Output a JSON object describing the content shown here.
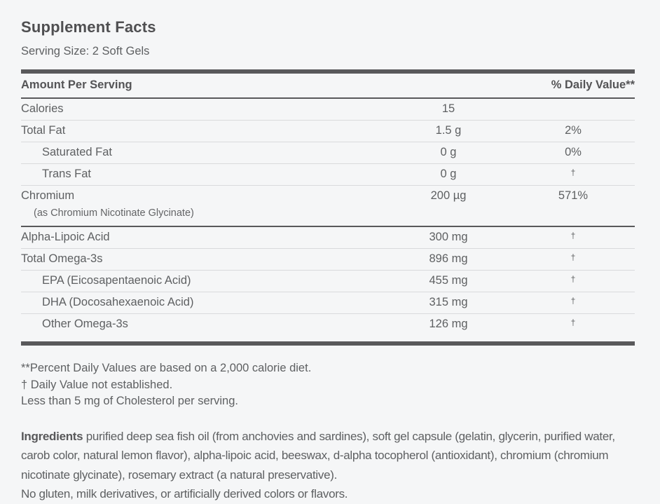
{
  "title": "Supplement Facts",
  "serving_size": "Serving Size: 2 Soft Gels",
  "table": {
    "header": {
      "amount_label": "Amount Per Serving",
      "dv_label": "% Daily Value**"
    },
    "rows": [
      {
        "name": "Calories",
        "amount": "15",
        "dv": ""
      },
      {
        "name": "Total Fat",
        "amount": "1.5 g",
        "dv": "2%"
      },
      {
        "name": "Saturated Fat",
        "amount": "0 g",
        "dv": "0%",
        "indent": true
      },
      {
        "name": "Trans Fat",
        "amount": "0 g",
        "dv": "†",
        "indent": true
      },
      {
        "name": "Chromium",
        "sub": "(as Chromium Nicotinate Glycinate)",
        "amount": "200 µg",
        "dv": "571%"
      },
      {
        "name": "Alpha-Lipoic Acid",
        "amount": "300 mg",
        "dv": "†",
        "strong_top": true
      },
      {
        "name": "Total Omega-3s",
        "amount": "896 mg",
        "dv": "†"
      },
      {
        "name": "EPA (Eicosapentaenoic Acid)",
        "amount": "455 mg",
        "dv": "†",
        "indent": true
      },
      {
        "name": "DHA (Docosahexaenoic Acid)",
        "amount": "315 mg",
        "dv": "†",
        "indent": true
      },
      {
        "name": "Other Omega-3s",
        "amount": "126 mg",
        "dv": "†",
        "indent": true
      }
    ]
  },
  "footnotes": [
    "**Percent Daily Values are based on a 2,000 calorie diet.",
    "† Daily Value not established.",
    "Less than 5 mg of Cholesterol per serving."
  ],
  "ingredients": {
    "label": "Ingredients",
    "text": " purified deep sea fish oil (from anchovies and sardines), soft gel capsule (gelatin, glycerin, purified water, carob color, natural lemon flavor), alpha-lipoic acid, beeswax, d-alpha tocopherol (antioxidant), chromium (chromium nicotinate glycinate), rosemary extract (a natural preservative).",
    "claims": "No gluten, milk derivatives, or artificially derived colors or flavors."
  },
  "colors": {
    "background": "#f5f6f7",
    "rule_dark": "#59595b",
    "rule_light": "#d9dadc",
    "text_dark": "#545456",
    "text_body": "#5e6062"
  }
}
